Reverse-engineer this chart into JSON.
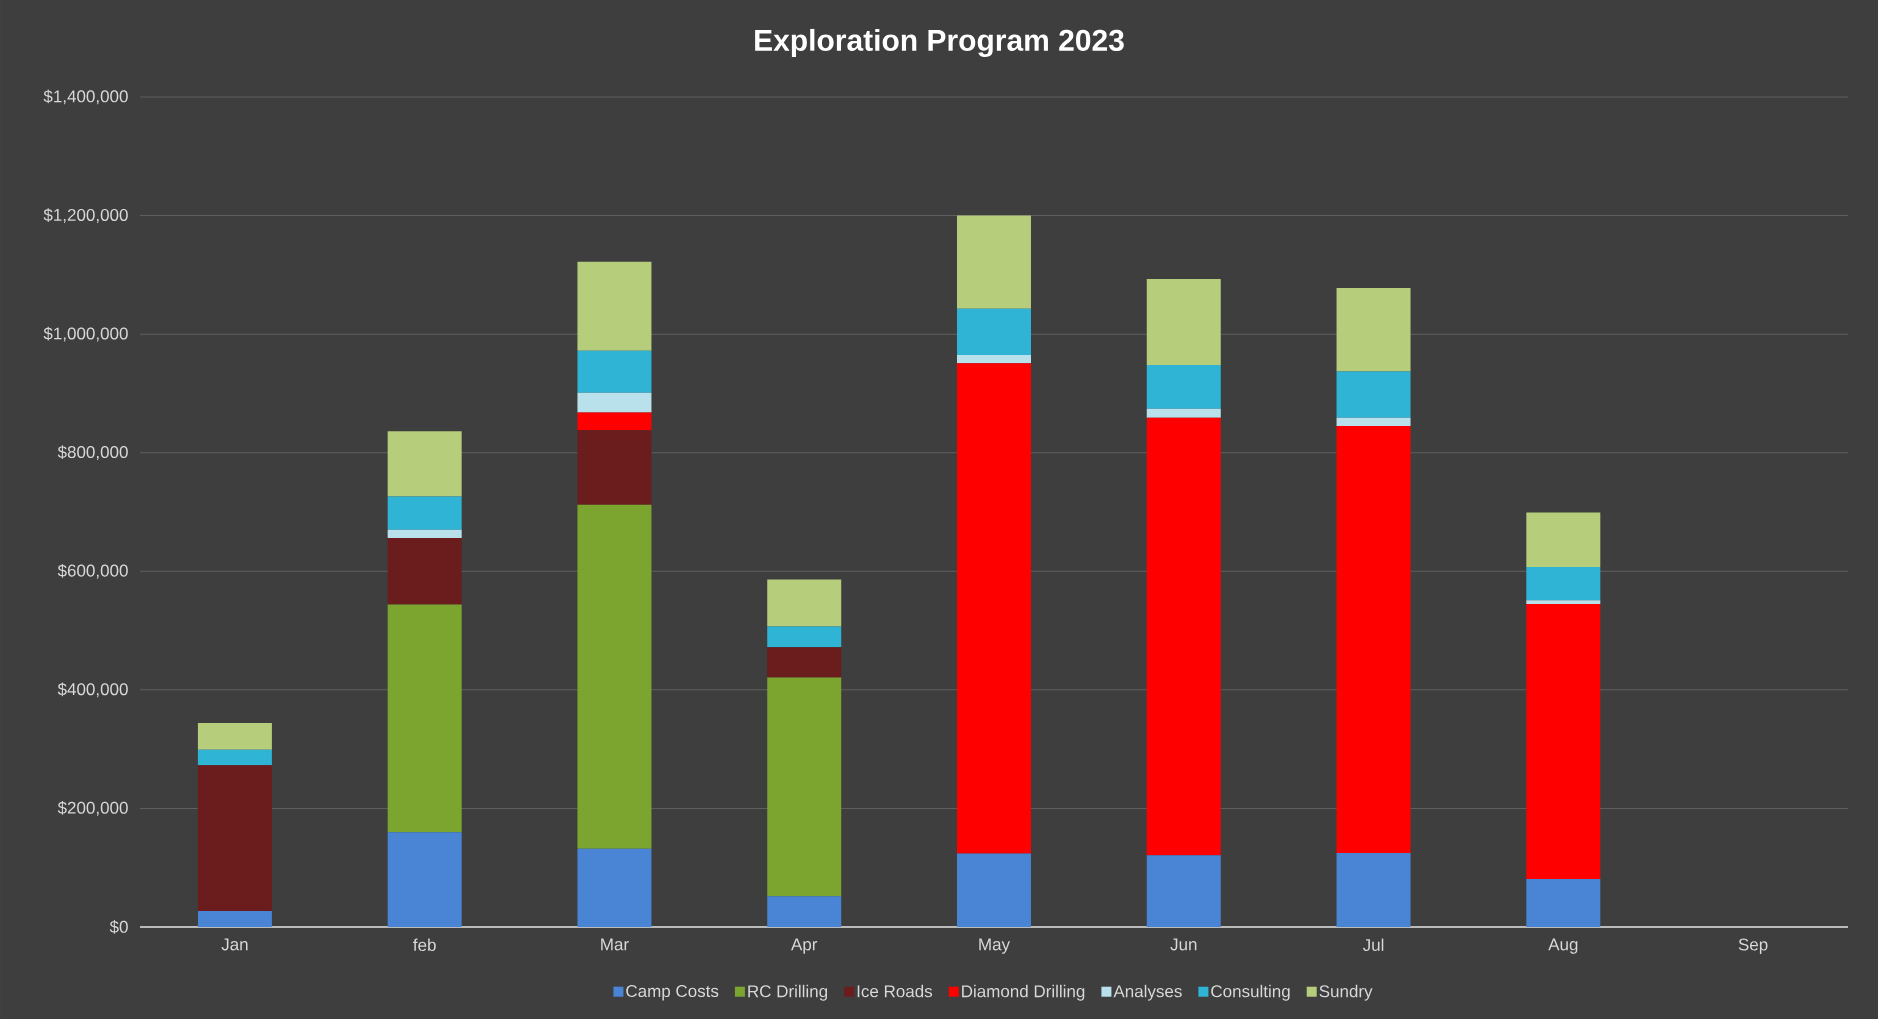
{
  "chart_data": {
    "type": "bar",
    "stacked": true,
    "title": "Exploration Program 2023",
    "categories": [
      "Jan",
      "feb",
      "Mar",
      "Apr",
      "May",
      "Jun",
      "Jul",
      "Aug",
      "Sep"
    ],
    "series": [
      {
        "name": "Camp Costs",
        "color": "#4a84d4",
        "values": [
          27000,
          160000,
          132000,
          52000,
          124000,
          121000,
          125000,
          81000,
          0
        ]
      },
      {
        "name": "RC Drilling",
        "color": "#7ba52f",
        "values": [
          0,
          384000,
          580000,
          369000,
          0,
          0,
          0,
          0,
          0
        ]
      },
      {
        "name": "Ice Roads",
        "color": "#6b1d1d",
        "values": [
          246000,
          112000,
          126000,
          51000,
          0,
          0,
          0,
          0,
          0
        ]
      },
      {
        "name": "Diamond Drilling",
        "color": "#ff0000",
        "values": [
          0,
          0,
          30000,
          0,
          827000,
          738000,
          720000,
          464000,
          0
        ]
      },
      {
        "name": "Analyses",
        "color": "#b9e1ec",
        "values": [
          0,
          14000,
          33000,
          0,
          14000,
          15000,
          14000,
          6000,
          0
        ]
      },
      {
        "name": "Consulting",
        "color": "#30b4d6",
        "values": [
          26000,
          56000,
          71000,
          35000,
          78000,
          74000,
          78000,
          56000,
          0
        ]
      },
      {
        "name": "Sundry",
        "color": "#b6cd7c",
        "values": [
          45000,
          110000,
          150000,
          79000,
          157000,
          145000,
          141000,
          92000,
          0
        ]
      }
    ],
    "ylim": [
      0,
      1400000
    ],
    "yticks": [
      {
        "value": 0,
        "label": "$0"
      },
      {
        "value": 200000,
        "label": "$200,000"
      },
      {
        "value": 400000,
        "label": "$400,000"
      },
      {
        "value": 600000,
        "label": "$600,000"
      },
      {
        "value": 800000,
        "label": "$800,000"
      },
      {
        "value": 1000000,
        "label": "$1,000,000"
      },
      {
        "value": 1200000,
        "label": "$1,200,000"
      },
      {
        "value": 1400000,
        "label": "$1,400,000"
      }
    ],
    "grid": "y",
    "legend": "bottom"
  }
}
